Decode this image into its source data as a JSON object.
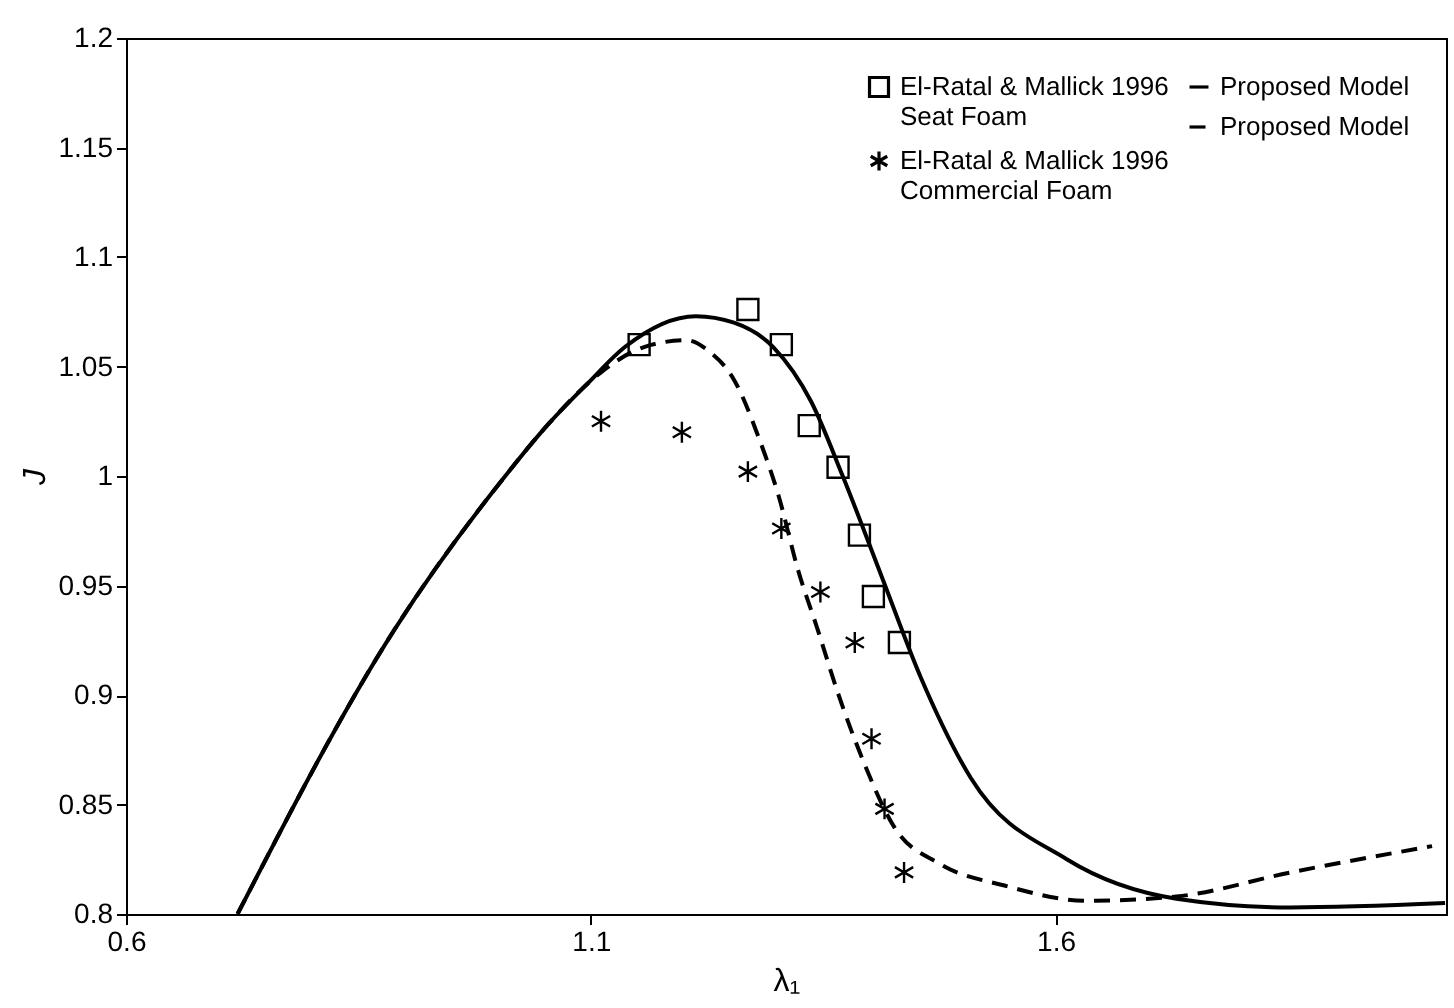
{
  "chart_data": {
    "type": "line",
    "xlabel": "λ₁",
    "ylabel": "J",
    "xlim": [
      0.6,
      2.02
    ],
    "ylim": [
      0.8,
      1.2
    ],
    "xticks": [
      0.6,
      1.1,
      1.6
    ],
    "yticks": [
      0.8,
      0.85,
      0.9,
      0.95,
      1,
      1.05,
      1.1,
      1.15,
      1.2
    ],
    "grid": false,
    "legend": "top right",
    "series": [
      {
        "type": "scatter",
        "name": "El-Ratal & Mallick 1996 Seat Foam",
        "color": "#000000",
        "marker": "square",
        "x": [
          1.152,
          1.269,
          1.305,
          1.335,
          1.366,
          1.389,
          1.404,
          1.432
        ],
        "values": [
          1.06,
          1.076,
          1.06,
          1.023,
          1.004,
          0.973,
          0.945,
          0.924
        ]
      },
      {
        "type": "scatter",
        "name": "El-Ratal & Mallick 1996 Commercial Foam",
        "color": "#000000",
        "marker": "cross",
        "x": [
          1.111,
          1.198,
          1.269,
          1.305,
          1.347,
          1.384,
          1.402,
          1.416,
          1.437
        ],
        "values": [
          1.025,
          1.02,
          1.002,
          0.976,
          0.947,
          0.924,
          0.88,
          0.848,
          0.819
        ]
      },
      {
        "name": "Proposed Model",
        "color": "#000000",
        "line_style": "solid",
        "marker": "none",
        "x": [
          0.72,
          0.889,
          1.008,
          1.055,
          1.096,
          1.137,
          1.213,
          1.254,
          1.296,
          1.337,
          1.371,
          1.413,
          1.455,
          1.509,
          1.612,
          1.73,
          1.853,
          2.019
        ],
        "values": [
          0.8,
          0.93,
          1.0,
          1.024,
          1.042,
          1.059,
          1.073,
          1.07,
          1.059,
          1.034,
          1.0,
          0.954,
          0.908,
          0.862,
          0.825,
          0.807,
          0.803,
          0.805
        ]
      },
      {
        "name": "Proposed Model",
        "color": "#000000",
        "line_style": "dashed",
        "marker": "none",
        "x": [
          0.72,
          0.889,
          1.008,
          1.055,
          1.11,
          1.158,
          1.203,
          1.227,
          1.254,
          1.282,
          1.302,
          1.323,
          1.344,
          1.365,
          1.392,
          1.426,
          1.475,
          1.545,
          1.634,
          1.73,
          1.853,
          2.005
        ],
        "values": [
          0.8,
          0.93,
          1.0,
          1.024,
          1.047,
          1.059,
          1.062,
          1.057,
          1.044,
          1.016,
          0.991,
          0.957,
          0.93,
          0.902,
          0.871,
          0.84,
          0.823,
          0.813,
          0.806,
          0.808,
          0.819,
          0.831
        ]
      }
    ]
  }
}
